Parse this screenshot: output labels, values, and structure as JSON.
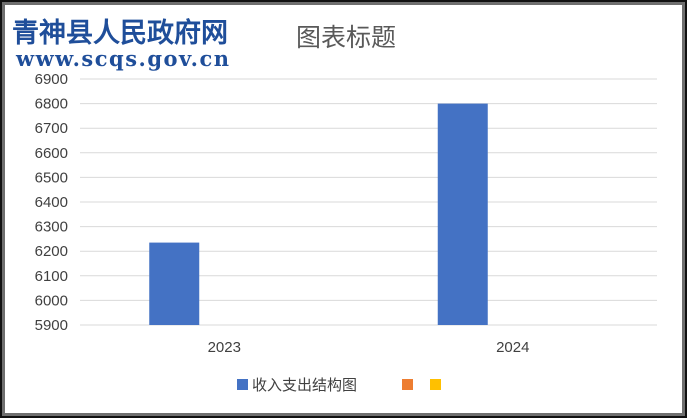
{
  "watermark": {
    "site_name": "青神县人民政府网",
    "url": "www.scqs.gov.cn",
    "color": "#1f4e9a"
  },
  "chart_data": {
    "type": "bar",
    "title": "图表标题",
    "categories": [
      "2023",
      "2024"
    ],
    "series": [
      {
        "name": "收入支出结构图",
        "values": [
          6235,
          6800
        ],
        "color": "#4472c4"
      },
      {
        "name": "",
        "values": [
          null,
          null
        ],
        "color": "#ed7d31"
      },
      {
        "name": "",
        "values": [
          null,
          null
        ],
        "color": "#ffc000"
      }
    ],
    "ylim": [
      5900,
      6900
    ],
    "yticks": [
      "6900",
      "6800",
      "6700",
      "6600",
      "6500",
      "6400",
      "6300",
      "6200",
      "6100",
      "6000",
      "5900"
    ],
    "xlabel": "",
    "ylabel": "",
    "grid": true,
    "legend_position": "bottom"
  }
}
